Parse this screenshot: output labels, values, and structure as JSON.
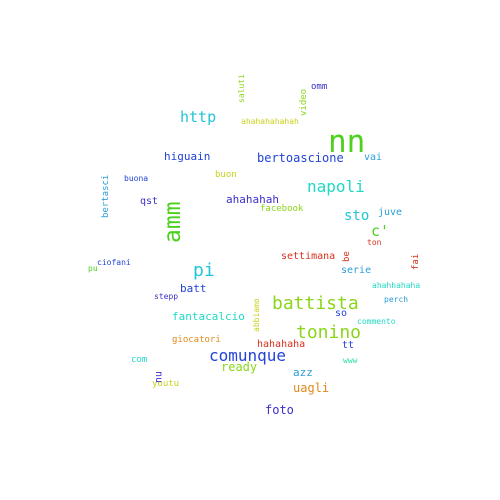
{
  "colors": {
    "green": "#4cd11e",
    "lime": "#8bd61b",
    "cyan": "#22c4d6",
    "teal": "#1fd9c3",
    "mint": "#2fe0a6",
    "blue": "#2243d6",
    "indigo": "#3a2fc9",
    "sky": "#2a9ed8",
    "yellow": "#c9d11b",
    "orange": "#e0891a",
    "red": "#d8311e"
  },
  "words": {
    "nn": "nn",
    "amm": "amm",
    "pi": "pi",
    "battista": "battista",
    "tonino": "tonino",
    "comunque": "comunque",
    "napoli": "napoli",
    "http": "http",
    "bertoascione": "bertoascione",
    "c": "c'",
    "sto": "sto",
    "foto": "foto",
    "ready": "ready",
    "uagli": "uagli",
    "azz": "azz",
    "fantacalcio": "fantacalcio",
    "higuain": "higuain",
    "ahahahah": "ahahahah",
    "batt": "batt",
    "hahahaha": "hahahaha",
    "settimana": "settimana",
    "vai": "vai",
    "juve": "juve",
    "serie": "serie",
    "so": "so",
    "tt": "tt",
    "qst": "qst",
    "buon": "buon",
    "facebook": "facebook",
    "giocatori": "giocatori",
    "com": "com",
    "youtu": "youtu",
    "nu": "nu",
    "omm": "omm",
    "video": "video",
    "saluti": "saluti",
    "ahahahahahah": "ahahahahahah",
    "buona": "buona",
    "bertasci": "bertasci",
    "ciofani": "ciofani",
    "pu": "pu",
    "stepp": "stepp",
    "abbiamo": "abbiamo",
    "be": "be",
    "ton": "ton",
    "fai": "fai",
    "ahahhahaha": "ahahhahaha",
    "perch": "perch",
    "commento": "commento",
    "www": "www"
  }
}
